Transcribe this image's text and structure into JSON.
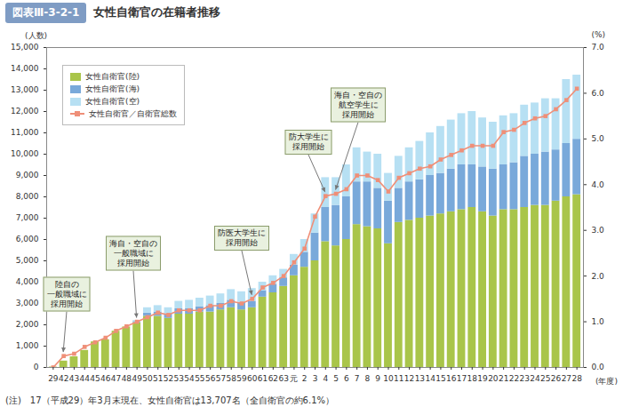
{
  "chart_data": {
    "type": "bar",
    "figure_number": "図表Ⅲ-3-2-1",
    "title": "女性自衛官の在籍者推移",
    "y_label": "(人数)",
    "y2_label": "(%)",
    "x_label": "(年度)",
    "note": "(注)　17（平成29）年3月末現在、女性自衛官は13,707名（全自衛官の約6.1%）",
    "stacked": true,
    "grid": false,
    "legend": "top-left",
    "categories": [
      "29",
      "42",
      "43",
      "44",
      "45",
      "46",
      "47",
      "48",
      "49",
      "50",
      "51",
      "52",
      "53",
      "54",
      "55",
      "56",
      "57",
      "58",
      "59",
      "60",
      "61",
      "62",
      "63",
      "元",
      "2",
      "3",
      "4",
      "5",
      "6",
      "7",
      "8",
      "9",
      "10",
      "11",
      "12",
      "13",
      "14",
      "15",
      "16",
      "17",
      "18",
      "19",
      "20",
      "21",
      "22",
      "23",
      "24",
      "25",
      "26",
      "27",
      "28"
    ],
    "series": [
      {
        "name": "女性自衛官(陸)",
        "color": "#a9c54a",
        "values": [
          20,
          300,
          500,
          800,
          1200,
          1300,
          1700,
          1900,
          2100,
          2400,
          2400,
          2300,
          2500,
          2500,
          2600,
          2600,
          2700,
          2800,
          2700,
          2800,
          3300,
          3500,
          3800,
          4300,
          4700,
          5000,
          5900,
          5700,
          6000,
          6700,
          6600,
          6500,
          5800,
          6800,
          6900,
          7000,
          7100,
          7200,
          7300,
          7400,
          7500,
          7300,
          7100,
          7400,
          7400,
          7500,
          7600,
          7600,
          7800,
          8000,
          8100
        ]
      },
      {
        "name": "女性自衛官(海)",
        "color": "#79a9da",
        "values": [
          0,
          0,
          0,
          0,
          0,
          0,
          0,
          0,
          50,
          150,
          200,
          200,
          250,
          250,
          250,
          300,
          300,
          350,
          350,
          300,
          300,
          400,
          400,
          500,
          700,
          1300,
          1600,
          1900,
          2000,
          2000,
          2100,
          1900,
          2000,
          1600,
          1800,
          1800,
          1900,
          1900,
          2000,
          2100,
          2000,
          2100,
          2200,
          2100,
          2200,
          2400,
          2400,
          2500,
          2400,
          2500,
          2600
        ]
      },
      {
        "name": "女性自衛官(空)",
        "color": "#b7e0f3",
        "values": [
          0,
          0,
          0,
          0,
          0,
          0,
          0,
          0,
          50,
          250,
          300,
          300,
          350,
          400,
          400,
          450,
          450,
          500,
          500,
          600,
          400,
          400,
          400,
          500,
          600,
          900,
          1400,
          1300,
          1500,
          1600,
          1400,
          1600,
          1300,
          1500,
          1600,
          1800,
          2000,
          2200,
          2300,
          2400,
          2500,
          2300,
          2200,
          2300,
          2300,
          2400,
          2400,
          2500,
          2400,
          3000,
          3007
        ]
      },
      {
        "name": "女性自衛官／自衛官総数",
        "type": "line",
        "axis": "y2",
        "color": "#ef8f78",
        "marker": "square",
        "values": [
          0.0,
          0.25,
          0.3,
          0.45,
          0.55,
          0.65,
          0.8,
          0.9,
          1.0,
          1.1,
          1.2,
          1.15,
          1.25,
          1.25,
          1.25,
          1.35,
          1.35,
          1.45,
          1.4,
          1.5,
          1.75,
          1.85,
          2.0,
          2.3,
          2.6,
          3.3,
          3.75,
          3.8,
          3.9,
          4.2,
          4.2,
          4.1,
          3.85,
          4.15,
          4.25,
          4.35,
          4.4,
          4.55,
          4.65,
          4.75,
          4.85,
          4.85,
          4.85,
          5.15,
          5.2,
          5.35,
          5.45,
          5.5,
          5.65,
          5.85,
          6.1
        ]
      }
    ],
    "ylim": [
      0,
      15000
    ],
    "yticks": [
      0,
      {
        "value": 1000,
        "label": "1,000"
      },
      {
        "value": 2000,
        "label": "2,000"
      },
      {
        "value": 3000,
        "label": "3,000"
      },
      {
        "value": 4000,
        "label": "4,000"
      },
      {
        "value": 5000,
        "label": "5,000"
      },
      {
        "value": 6000,
        "label": "6,000"
      },
      {
        "value": 7000,
        "label": "7,000"
      },
      {
        "value": 8000,
        "label": "8,000"
      },
      {
        "value": 9000,
        "label": "9,000"
      },
      {
        "value": 10000,
        "label": "10,000"
      },
      {
        "value": 11000,
        "label": "11,000"
      },
      {
        "value": 12000,
        "label": "12,000"
      },
      {
        "value": 13000,
        "label": "13,000"
      },
      {
        "value": 14000,
        "label": "14,000"
      },
      {
        "value": 15000,
        "label": "15,000"
      }
    ],
    "y2lim": [
      0,
      7
    ],
    "y2ticks": [
      {
        "value": 0,
        "label": "0.0"
      },
      {
        "value": 1,
        "label": "1.0"
      },
      {
        "value": 2,
        "label": "2.0"
      },
      {
        "value": 3,
        "label": "3.0"
      },
      {
        "value": 4,
        "label": "4.0"
      },
      {
        "value": 5,
        "label": "5.0"
      },
      {
        "value": 6,
        "label": "6.0"
      },
      {
        "value": 7,
        "label": "7.0"
      }
    ],
    "annotations": [
      {
        "text": "陸自の\n一般職域に\n採用開始",
        "x": "42"
      },
      {
        "text": "海自・空自の\n一般職域に\n採用開始",
        "x": "49"
      },
      {
        "text": "防医大学生に\n採用開始",
        "x": "60"
      },
      {
        "text": "防大学生に\n採用開始",
        "x": "4"
      },
      {
        "text": "海自・空自の\n航空学生に\n採用開始",
        "x": "5"
      }
    ]
  }
}
